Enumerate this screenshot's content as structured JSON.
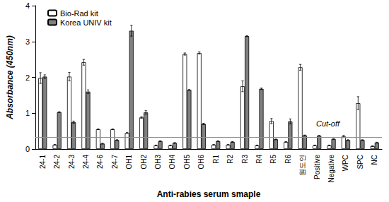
{
  "chart_data": {
    "type": "bar",
    "x_label": "Anti-rabies serum smaple",
    "y_label": "Absorbance (450nm)",
    "categories": [
      "24-1",
      "24-2",
      "24-3",
      "24-4",
      "24-6",
      "24-7",
      "OH1",
      "OH2",
      "OH3",
      "OH4",
      "OH5",
      "OH6",
      "R1",
      "R2",
      "R3",
      "R4",
      "R5",
      "R6",
      "원도인",
      "Positive",
      "Negative",
      "WPC",
      "SPC",
      "NC"
    ],
    "series": [
      {
        "name": "Bio-Rad kit",
        "color": "#ffffff",
        "values": [
          1.98,
          0.12,
          2.02,
          2.42,
          0.55,
          0.55,
          0.45,
          0.88,
          0.1,
          0.1,
          2.65,
          2.68,
          0.12,
          0.12,
          1.75,
          0.1,
          0.78,
          0.2,
          2.28,
          0.1,
          0.1,
          0.35,
          1.28,
          0.08
        ],
        "errors": [
          0.15,
          0.01,
          0.12,
          0.08,
          0.01,
          0.01,
          0.01,
          0.02,
          0.01,
          0.01,
          0.03,
          0.03,
          0.01,
          0.01,
          0.15,
          0.01,
          0.07,
          0.01,
          0.08,
          0.01,
          0.01,
          0.03,
          0.18,
          0.01
        ]
      },
      {
        "name": "Korea UNIV kit",
        "color": "#808080",
        "values": [
          2.02,
          1.03,
          0.75,
          1.6,
          0.15,
          0.25,
          3.3,
          1.02,
          0.22,
          0.17,
          1.65,
          0.7,
          0.22,
          0.2,
          3.15,
          1.68,
          0.27,
          0.77,
          0.38,
          0.37,
          0.28,
          0.25,
          0.25,
          0.18
        ],
        "errors": [
          0.05,
          0.01,
          0.03,
          0.05,
          0.01,
          0.01,
          0.15,
          0.05,
          0.01,
          0.01,
          0.01,
          0.02,
          0.01,
          0.01,
          0.01,
          0.02,
          0.01,
          0.07,
          0.01,
          0.01,
          0.01,
          0.01,
          0.01,
          0.01
        ]
      }
    ],
    "cutoff": {
      "value": 0.33,
      "label": "Cut-off",
      "color": "#6f96c8"
    },
    "ylim": [
      0,
      4
    ],
    "yticks": [
      0,
      1,
      2,
      3,
      4
    ],
    "grid": false,
    "legend": "upper left"
  }
}
